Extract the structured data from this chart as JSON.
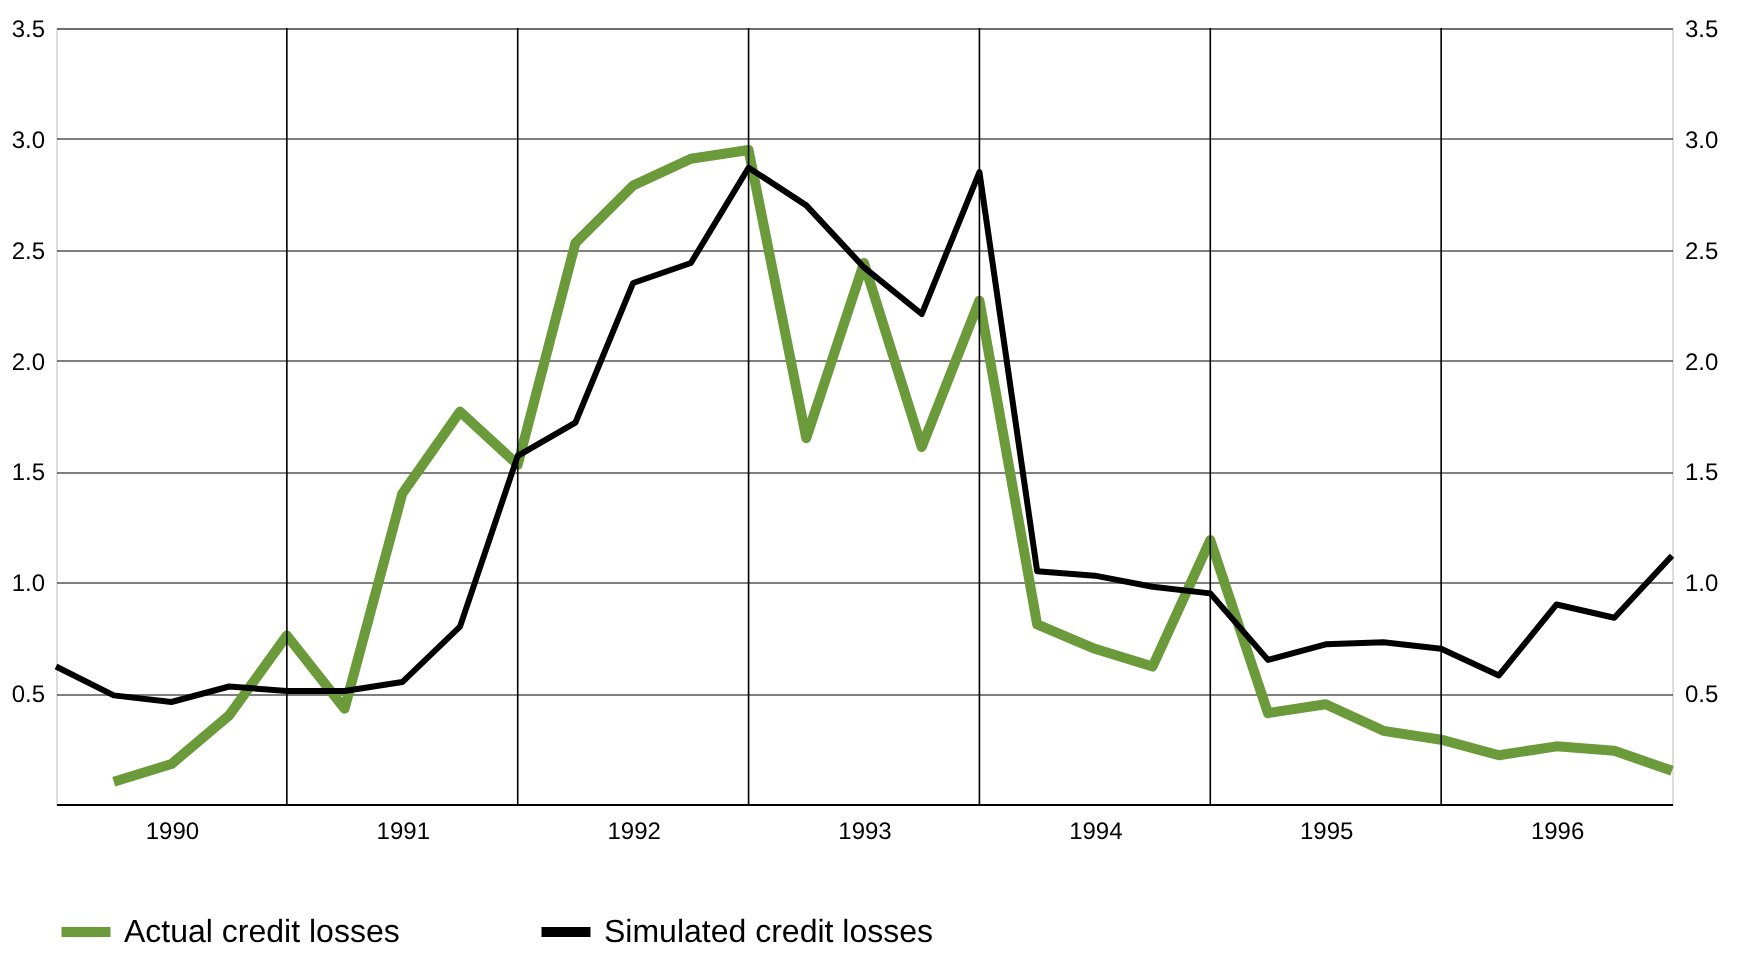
{
  "chart_data": {
    "type": "line",
    "xlim": [
      1990,
      1997
    ],
    "xticks": [
      {
        "value": 1990.5,
        "label": "1990"
      },
      {
        "value": 1991.5,
        "label": "1991"
      },
      {
        "value": 1992.5,
        "label": "1992"
      },
      {
        "value": 1993.5,
        "label": "1993"
      },
      {
        "value": 1994.5,
        "label": "1994"
      },
      {
        "value": 1995.5,
        "label": "1995"
      },
      {
        "value": 1996.5,
        "label": "1996"
      }
    ],
    "ylim": [
      0,
      3.5
    ],
    "yticks": [
      0.5,
      {
        "value": 1,
        "label": "1.0"
      },
      1.5,
      {
        "value": 2,
        "label": "2.0"
      },
      2.5,
      {
        "value": 3,
        "label": "3.0"
      },
      3.5
    ],
    "y2lim": [
      0,
      3.5
    ],
    "y2ticks": [
      0.5,
      {
        "value": 1,
        "label": "1.0"
      },
      1.5,
      {
        "value": 2,
        "label": "2.0"
      },
      2.5,
      {
        "value": 3,
        "label": "3.0"
      },
      3.5
    ],
    "x": [
      1990,
      1990.25,
      1990.5,
      1990.75,
      1991,
      1991.25,
      1991.5,
      1991.75,
      1992,
      1992.25,
      1992.5,
      1992.75,
      1993,
      1993.25,
      1993.5,
      1993.75,
      1994,
      1994.25,
      1994.5,
      1994.75,
      1995,
      1995.25,
      1995.5,
      1995.75,
      1996,
      1996.25,
      1996.5,
      1996.75,
      1997
    ],
    "series": [
      {
        "name": "Actual credit losses",
        "color": "#6a9a3a",
        "x": [
          1990.25,
          1990.5,
          1990.75,
          1991,
          1991.25,
          1991.5,
          1991.75,
          1992,
          1992.25,
          1992.5,
          1992.75,
          1993,
          1993.25,
          1993.5,
          1993.75,
          1994,
          1994.25,
          1994.5,
          1994.75,
          1995,
          1995.25,
          1995.5,
          1995.75,
          1996,
          1996.25,
          1996.5,
          1996.75,
          1997
        ],
        "values": [
          0.1,
          0.18,
          0.4,
          0.76,
          0.43,
          1.4,
          1.77,
          1.53,
          2.53,
          2.79,
          2.91,
          2.95,
          1.65,
          2.44,
          1.61,
          2.27,
          0.81,
          0.7,
          0.62,
          1.19,
          0.41,
          0.45,
          0.33,
          0.29,
          0.22,
          0.26,
          0.24,
          0.15
        ]
      },
      {
        "name": "Simulated credit losses",
        "color": "#000000",
        "values": [
          0.62,
          0.49,
          0.46,
          0.53,
          0.51,
          0.51,
          0.55,
          0.8,
          1.57,
          1.72,
          2.35,
          2.44,
          2.87,
          2.7,
          2.42,
          2.21,
          2.85,
          1.05,
          1.03,
          0.98,
          0.95,
          0.65,
          0.72,
          0.73,
          0.7,
          0.58,
          0.9,
          0.84,
          1.12
        ]
      }
    ],
    "ref_lines": [
      {
        "axis": "x",
        "value": 1991
      },
      {
        "axis": "x",
        "value": 1992
      },
      {
        "axis": "x",
        "value": 1993
      },
      {
        "axis": "x",
        "value": 1994
      },
      {
        "axis": "x",
        "value": 1995
      },
      {
        "axis": "x",
        "value": 1996
      }
    ],
    "grid": "y",
    "legend": "bottom",
    "marker": "none",
    "line_style": "solid"
  }
}
